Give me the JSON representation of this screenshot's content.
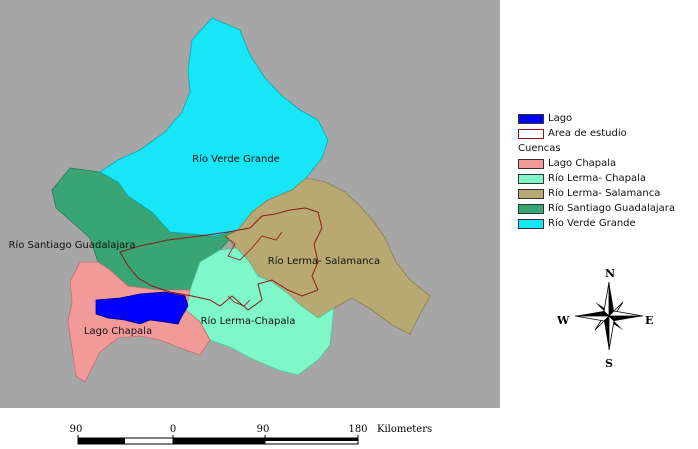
{
  "map": {
    "region_labels": {
      "verde": "Río Verde Grande",
      "santiago": "Río Santiago Guadalajara",
      "salamanca": "Río Lerma- Salamanca",
      "chapala_basin": "Río Lerma-Chapala",
      "lago_chapala": "Lago Chapala"
    }
  },
  "legend": {
    "lago": {
      "label": "Lago",
      "color": "#0000ff"
    },
    "area": {
      "label": "Area de estudio",
      "color": "#8b1a1a"
    },
    "header": "Cuencas",
    "items": [
      {
        "label": "Lago Chapala",
        "color": "#f29a9a"
      },
      {
        "label": "Río Lerma- Chapala",
        "color": "#80f7c9"
      },
      {
        "label": "Río Lerma- Salamanca",
        "color": "#b8a972"
      },
      {
        "label": "Río Santiago Guadalajara",
        "color": "#3aa574"
      },
      {
        "label": "Río Verde Grande",
        "color": "#17e6f6"
      }
    ]
  },
  "compass": {
    "n": "N",
    "s": "S",
    "e": "E",
    "w": "W"
  },
  "scale": {
    "ticks": [
      "90",
      "0",
      "90",
      "180"
    ],
    "unit": "Kilometers"
  },
  "colors": {
    "background": "#a6a6a6",
    "boundary": "#8b1a1a"
  }
}
